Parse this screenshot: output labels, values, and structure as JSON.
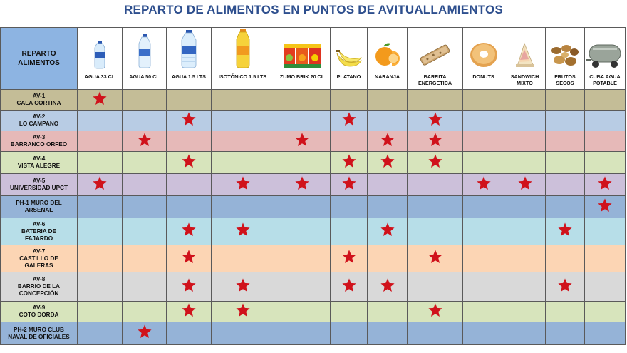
{
  "title": "REPARTO DE ALIMENTOS EN PUNTOS DE AVITUALLAMIENTOS",
  "corner_label": [
    "REPARTO",
    "ALIMENTOS"
  ],
  "items": [
    {
      "label": "AGUA 33 CL",
      "icon": "small-water-bottle-icon"
    },
    {
      "label": "AGUA 50 CL",
      "icon": "water-bottle-icon"
    },
    {
      "label": "AGUA 1.5 LTS",
      "icon": "large-water-bottle-icon"
    },
    {
      "label": "ISOTÓNICO 1.5 LTS",
      "icon": "isotonic-bottle-icon"
    },
    {
      "label": "ZUMO BRIK 20 CL",
      "icon": "juice-brik-icon"
    },
    {
      "label": "PLATANO",
      "icon": "banana-icon"
    },
    {
      "label": "NARANJA",
      "icon": "orange-icon"
    },
    {
      "label": "BARRITA ENERGETICA",
      "icon": "energy-bar-icon"
    },
    {
      "label": "DONUTS",
      "icon": "donut-icon"
    },
    {
      "label": "SANDWICH MIXTO",
      "icon": "sandwich-icon"
    },
    {
      "label": "FRUTOS SECOS",
      "icon": "nuts-icon"
    },
    {
      "label": "CUBA AGUA POTABLE",
      "icon": "water-tank-icon"
    }
  ],
  "stations": [
    {
      "lines": [
        "AV-1",
        "CALA CORTINA"
      ],
      "color": "#c4bd97",
      "supplies": [
        1,
        0,
        0,
        0,
        0,
        0,
        0,
        0,
        0,
        0,
        0,
        0
      ]
    },
    {
      "lines": [
        "AV-2",
        "LO CAMPANO"
      ],
      "color": "#b8cce4",
      "supplies": [
        0,
        0,
        1,
        0,
        0,
        1,
        0,
        1,
        0,
        0,
        0,
        0
      ]
    },
    {
      "lines": [
        "AV-3",
        "BARRANCO ORFEO"
      ],
      "color": "#e6b9b8",
      "supplies": [
        0,
        1,
        0,
        0,
        1,
        0,
        1,
        1,
        0,
        0,
        0,
        0
      ]
    },
    {
      "lines": [
        "AV-4",
        "VISTA ALEGRE"
      ],
      "color": "#d7e4bc",
      "supplies": [
        0,
        0,
        1,
        0,
        0,
        1,
        1,
        1,
        0,
        0,
        0,
        0
      ]
    },
    {
      "lines": [
        "AV-5",
        "UNIVERSIDAD UPCT"
      ],
      "color": "#ccc0da",
      "supplies": [
        1,
        0,
        0,
        1,
        1,
        1,
        0,
        0,
        1,
        1,
        0,
        1
      ]
    },
    {
      "lines": [
        "PH-1 MURO DEL",
        "ARSENAL"
      ],
      "color": "#95b3d7",
      "supplies": [
        0,
        0,
        0,
        0,
        0,
        0,
        0,
        0,
        0,
        0,
        0,
        1
      ]
    },
    {
      "lines": [
        "AV-6",
        "BATERIA DE",
        "FAJARDO"
      ],
      "color": "#b7dee8",
      "supplies": [
        0,
        0,
        1,
        1,
        0,
        0,
        1,
        0,
        0,
        0,
        1,
        0
      ]
    },
    {
      "lines": [
        "AV-7",
        "CASTILLO DE",
        "GALERAS"
      ],
      "color": "#fcd5b4",
      "supplies": [
        0,
        0,
        1,
        0,
        0,
        1,
        0,
        1,
        0,
        0,
        0,
        0
      ]
    },
    {
      "lines": [
        "AV-8",
        "BARRIO DE LA",
        "CONCEPCIÓN"
      ],
      "color": "#d9d9d9",
      "supplies": [
        0,
        0,
        1,
        1,
        0,
        1,
        1,
        0,
        0,
        0,
        1,
        0
      ]
    },
    {
      "lines": [
        "AV-9",
        "COTO DORDA"
      ],
      "color": "#d7e4bc",
      "supplies": [
        0,
        0,
        1,
        1,
        0,
        0,
        0,
        1,
        0,
        0,
        0,
        0
      ]
    },
    {
      "lines": [
        "PH-2 MURO CLUB",
        "NAVAL DE OFICIALES"
      ],
      "color": "#95b3d7",
      "supplies": [
        0,
        1,
        0,
        0,
        0,
        0,
        0,
        0,
        0,
        0,
        0,
        0
      ]
    }
  ],
  "colors": {
    "star": "#d0121b",
    "title": "#2e4f8e",
    "corner": "#8db4e2"
  }
}
